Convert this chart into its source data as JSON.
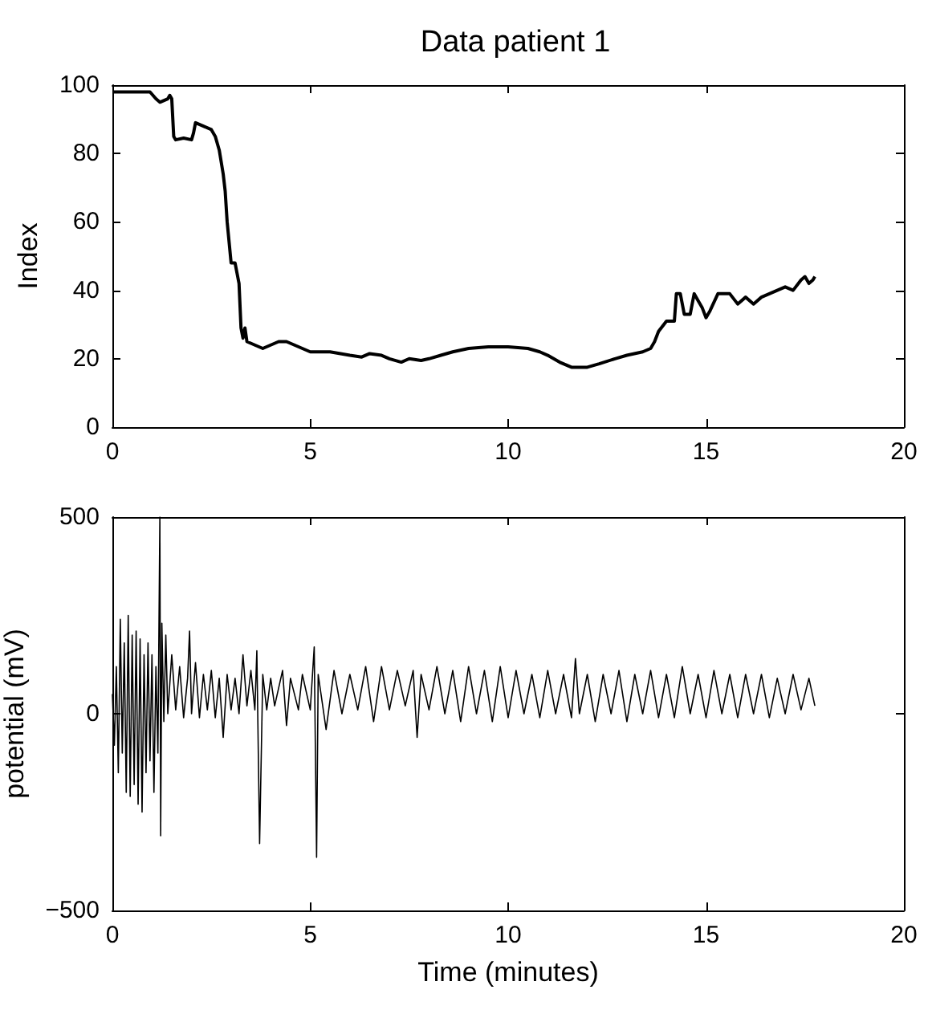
{
  "chart_data": [
    {
      "type": "line",
      "title": "Data patient 1",
      "ylabel": "Index",
      "xlim": [
        0,
        20
      ],
      "xticks": [
        0,
        5,
        10,
        15,
        20
      ],
      "ylim": [
        0,
        100
      ],
      "yticks": [
        0,
        20,
        40,
        60,
        80,
        100
      ],
      "grid": false,
      "marker": "none",
      "line_style": "solid",
      "series": [
        {
          "color": "#000000",
          "x": [
            0,
            0.95,
            1.1,
            1.2,
            1.4,
            1.45,
            1.5,
            1.55,
            1.6,
            1.8,
            2.0,
            2.05,
            2.1,
            2.3,
            2.5,
            2.6,
            2.7,
            2.8,
            2.85,
            2.9,
            3.0,
            3.1,
            3.2,
            3.25,
            3.3,
            3.35,
            3.4,
            3.6,
            3.8,
            4.0,
            4.2,
            4.4,
            4.6,
            4.8,
            5.0,
            5.2,
            5.5,
            6.0,
            6.3,
            6.5,
            6.8,
            7.0,
            7.3,
            7.5,
            7.8,
            8.0,
            8.3,
            8.6,
            9.0,
            9.5,
            10.0,
            10.5,
            10.8,
            11.0,
            11.3,
            11.6,
            12.0,
            12.3,
            12.7,
            13.0,
            13.4,
            13.6,
            13.7,
            13.8,
            14.0,
            14.2,
            14.25,
            14.35,
            14.45,
            14.6,
            14.7,
            14.8,
            14.9,
            15.0,
            15.1,
            15.3,
            15.5,
            15.6,
            15.8,
            16.0,
            16.2,
            16.4,
            16.6,
            17.0,
            17.2,
            17.4,
            17.5,
            17.6,
            17.7,
            17.75
          ],
          "values": [
            98,
            98,
            96,
            95,
            96,
            97,
            96,
            85,
            84,
            84.5,
            84,
            86,
            89,
            88,
            87,
            85,
            81,
            74,
            69,
            60,
            48,
            48,
            42,
            29,
            26,
            29,
            25,
            24,
            23,
            24,
            25,
            25,
            24,
            23,
            22,
            22,
            22,
            21,
            20.5,
            21.5,
            21,
            20,
            19,
            20,
            19.5,
            20,
            21,
            22,
            23,
            23.5,
            23.5,
            23,
            22,
            21,
            19,
            17.5,
            17.5,
            18.5,
            20,
            21,
            22,
            23,
            25,
            28,
            31,
            31,
            39,
            39,
            33,
            33,
            39,
            37,
            35,
            32,
            34,
            39,
            39,
            39,
            36,
            38,
            36,
            38,
            39,
            41,
            40,
            43,
            44,
            42,
            43,
            44
          ]
        }
      ]
    },
    {
      "type": "line",
      "xlabel": "Time (minutes)",
      "ylabel": "potential (mV)",
      "xlim": [
        0,
        20
      ],
      "xticks": [
        0,
        5,
        10,
        15,
        20
      ],
      "ylim": [
        -500,
        500
      ],
      "yticks": [
        -500,
        0,
        500
      ],
      "grid": false,
      "marker": "none",
      "line_style": "solid",
      "series": [
        {
          "color": "#000000",
          "x": [
            0,
            0.05,
            0.1,
            0.15,
            0.2,
            0.25,
            0.3,
            0.35,
            0.4,
            0.45,
            0.5,
            0.55,
            0.6,
            0.65,
            0.7,
            0.75,
            0.8,
            0.85,
            0.9,
            0.95,
            1.0,
            1.05,
            1.1,
            1.15,
            1.2,
            1.22,
            1.25,
            1.3,
            1.35,
            1.4,
            1.5,
            1.6,
            1.7,
            1.8,
            1.9,
            1.95,
            2.0,
            2.1,
            2.2,
            2.3,
            2.4,
            2.5,
            2.6,
            2.7,
            2.8,
            2.9,
            3.0,
            3.1,
            3.2,
            3.3,
            3.4,
            3.5,
            3.6,
            3.65,
            3.72,
            3.8,
            3.9,
            4.0,
            4.1,
            4.3,
            4.4,
            4.5,
            4.7,
            4.8,
            5.0,
            5.1,
            5.16,
            5.2,
            5.4,
            5.6,
            5.8,
            6.0,
            6.2,
            6.4,
            6.6,
            6.8,
            7.0,
            7.2,
            7.4,
            7.6,
            7.7,
            7.8,
            8.0,
            8.2,
            8.4,
            8.6,
            8.8,
            9.0,
            9.2,
            9.4,
            9.6,
            9.8,
            10.0,
            10.2,
            10.4,
            10.6,
            10.8,
            11.0,
            11.2,
            11.4,
            11.6,
            11.7,
            11.8,
            12.0,
            12.2,
            12.4,
            12.6,
            12.8,
            13.0,
            13.2,
            13.4,
            13.6,
            13.8,
            14.0,
            14.2,
            14.4,
            14.6,
            14.8,
            15.0,
            15.2,
            15.4,
            15.6,
            15.8,
            16.0,
            16.2,
            16.4,
            16.6,
            16.8,
            17.0,
            17.2,
            17.4,
            17.6,
            17.75
          ],
          "values": [
            50,
            -80,
            120,
            -150,
            240,
            -100,
            180,
            -200,
            250,
            -210,
            200,
            -180,
            210,
            -230,
            190,
            -250,
            150,
            -150,
            180,
            -120,
            150,
            -200,
            120,
            -100,
            500,
            -310,
            230,
            -20,
            200,
            0,
            150,
            10,
            120,
            -10,
            90,
            210,
            0,
            130,
            -10,
            100,
            10,
            110,
            -10,
            90,
            -60,
            100,
            10,
            90,
            0,
            150,
            20,
            110,
            10,
            160,
            -330,
            100,
            10,
            90,
            20,
            110,
            -30,
            90,
            10,
            100,
            10,
            170,
            -365,
            100,
            -40,
            110,
            0,
            100,
            10,
            120,
            -20,
            120,
            10,
            110,
            20,
            110,
            -60,
            100,
            10,
            120,
            0,
            110,
            -20,
            120,
            0,
            110,
            -20,
            120,
            -10,
            110,
            0,
            100,
            -10,
            110,
            0,
            100,
            -10,
            140,
            0,
            100,
            -20,
            100,
            0,
            110,
            -20,
            100,
            0,
            110,
            -10,
            100,
            -10,
            120,
            0,
            100,
            -10,
            110,
            0,
            100,
            -10,
            100,
            0,
            100,
            -10,
            90,
            0,
            100,
            10,
            90,
            20
          ]
        }
      ]
    }
  ]
}
